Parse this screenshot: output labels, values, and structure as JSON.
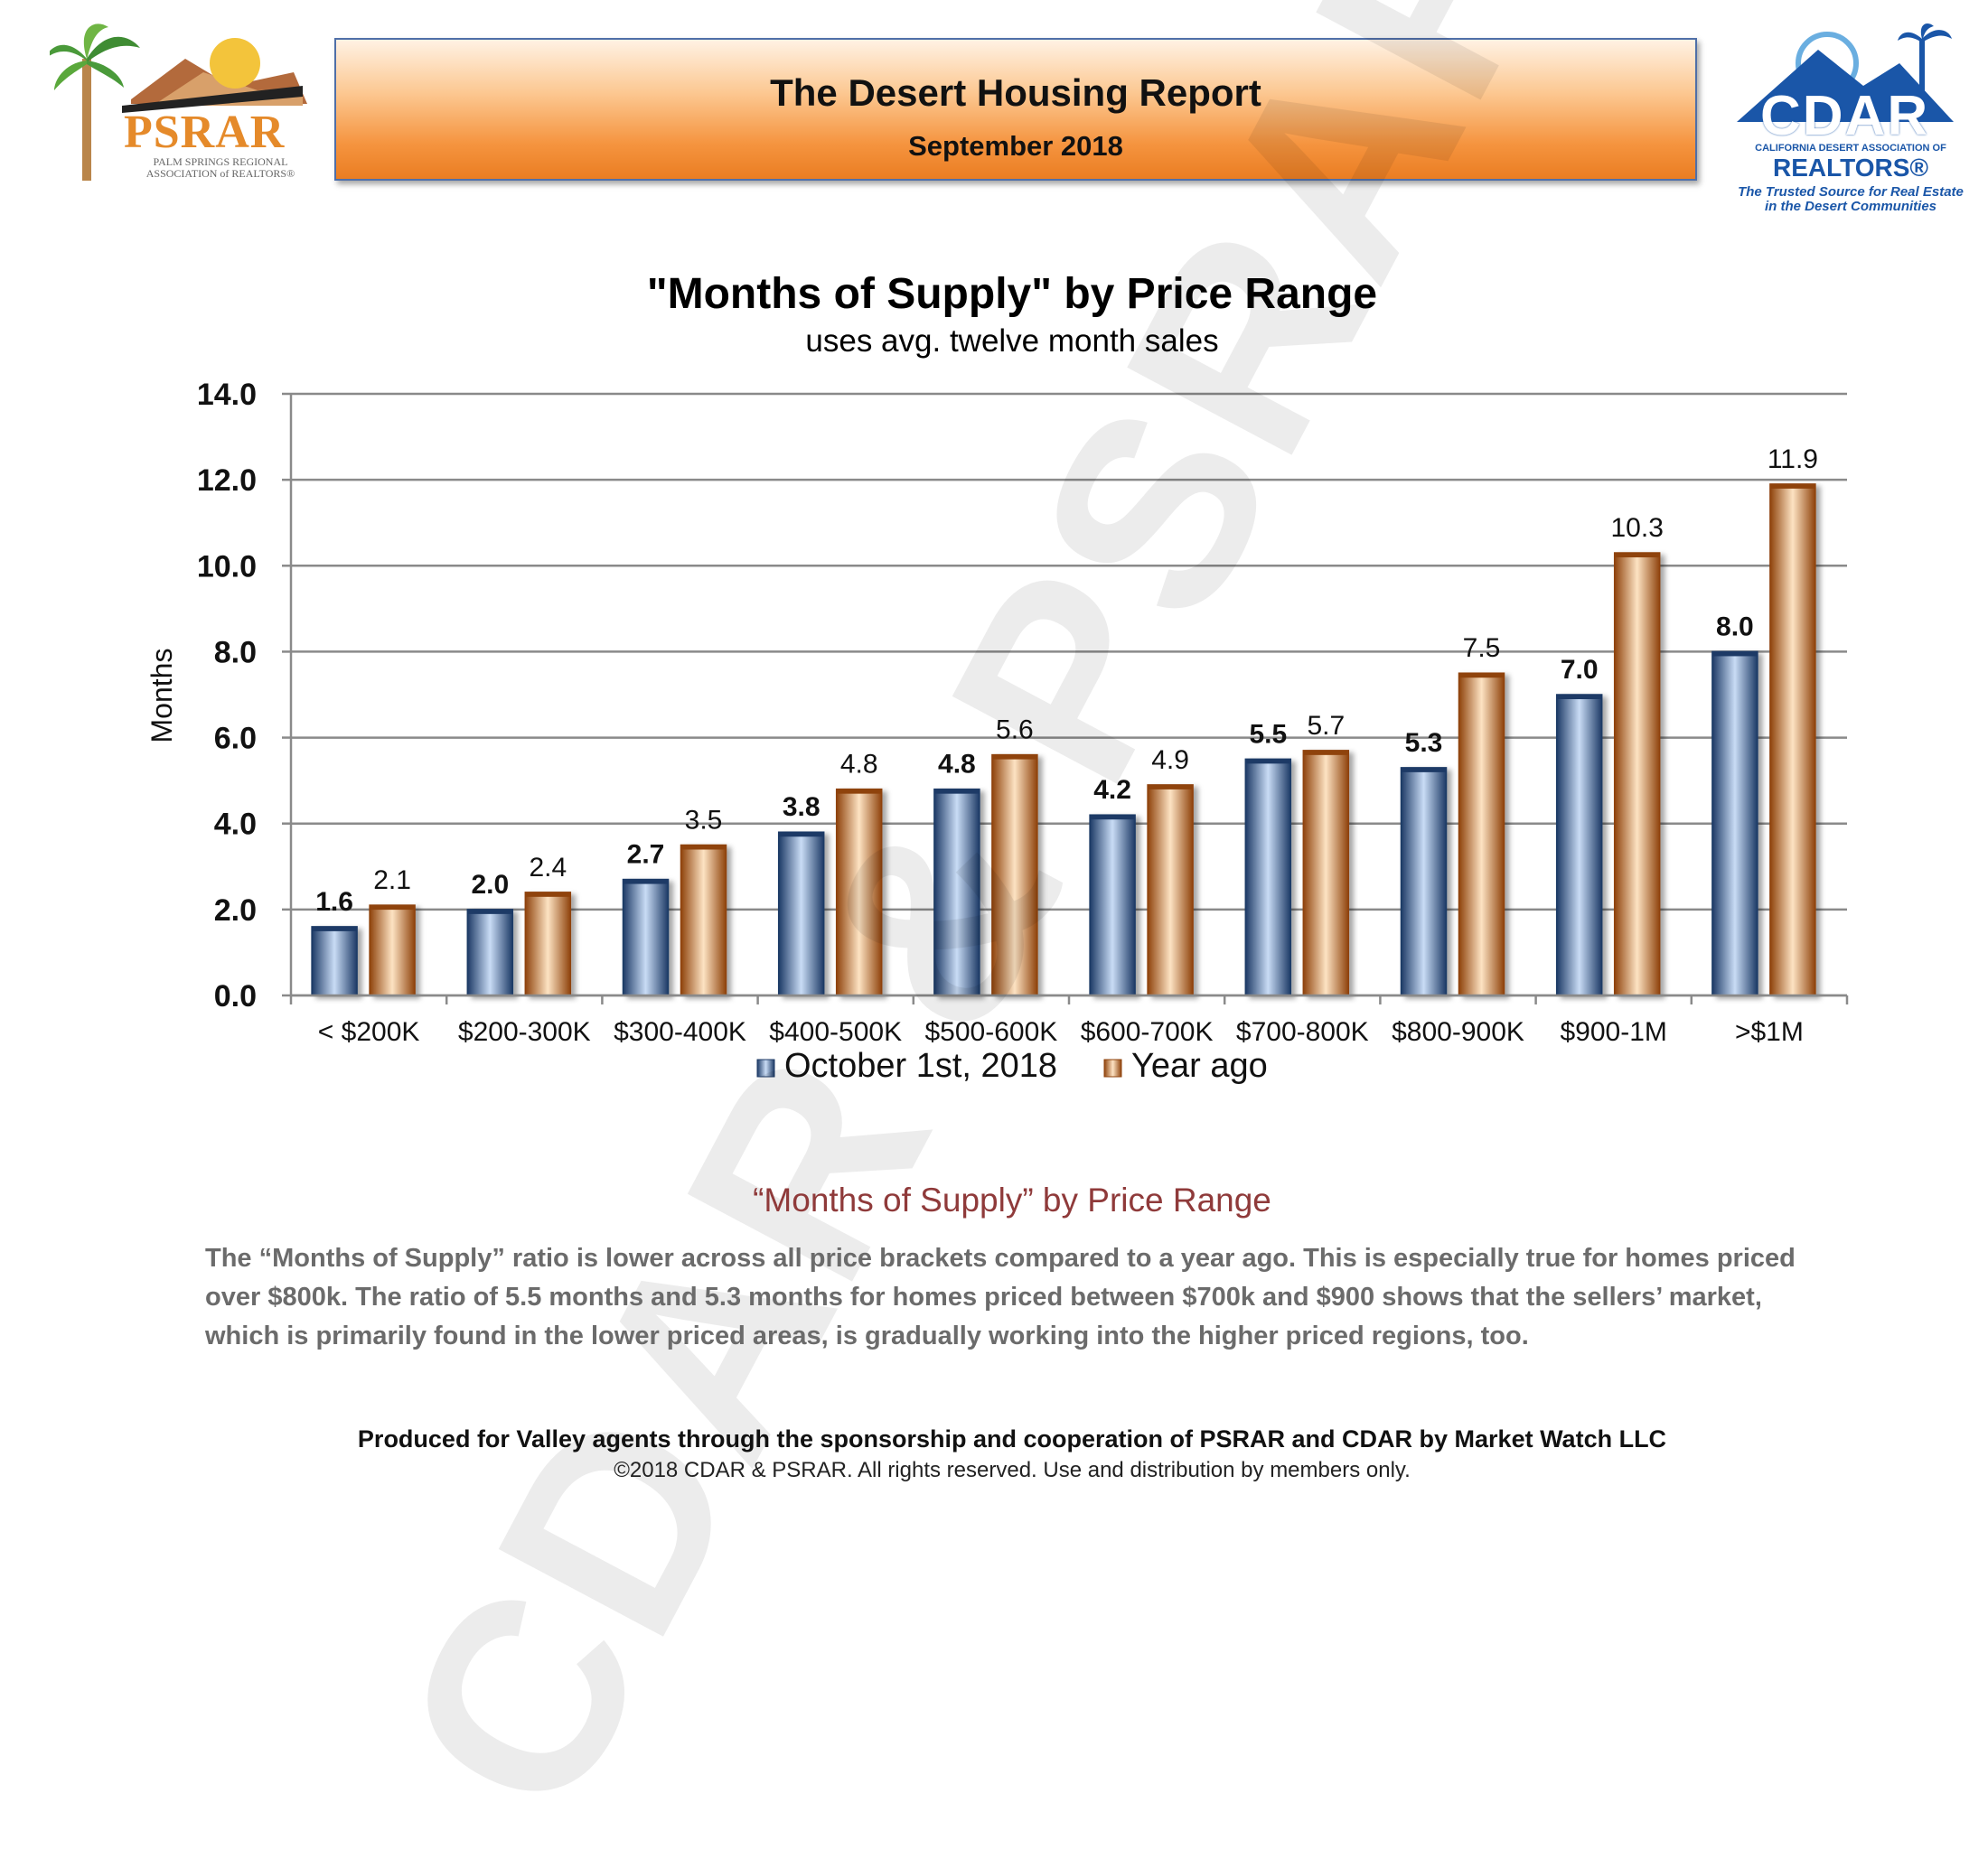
{
  "header": {
    "title": "The Desert Housing Report",
    "subtitle": "September 2018"
  },
  "logos": {
    "left": {
      "name": "PSRAR",
      "tagline": "PALM SPRINGS REGIONAL ASSOCIATION of REALTORS®"
    },
    "right": {
      "name": "CDAR",
      "small": "CALIFORNIA DESERT ASSOCIATION OF",
      "realtors": "REALTORS®",
      "tagline": "The Trusted Source for Real Estate in the Desert Communities"
    }
  },
  "watermark": "CDAR & PSRAR",
  "chart_data": {
    "type": "bar",
    "title": "\"Months of Supply\" by Price Range",
    "subtitle": "uses avg. twelve month sales",
    "ylabel": "Months",
    "xlabel": "",
    "ylim": [
      0,
      14
    ],
    "yticks": [
      "0.0",
      "2.0",
      "4.0",
      "6.0",
      "8.0",
      "10.0",
      "12.0",
      "14.0"
    ],
    "grid": true,
    "legend_position": "bottom",
    "categories": [
      "< $200K",
      "$200-300K",
      "$300-400K",
      "$400-500K",
      "$500-600K",
      "$600-700K",
      "$700-800K",
      "$800-900K",
      "$900-1M",
      ">$1M"
    ],
    "series": [
      {
        "name": "October 1st, 2018",
        "color": "#3f6aa8",
        "values": [
          1.6,
          2.0,
          2.7,
          3.8,
          4.8,
          4.2,
          5.5,
          5.3,
          7.0,
          8.0
        ],
        "labels": [
          "1.6",
          "2.0",
          "2.7",
          "3.8",
          "4.8",
          "4.2",
          "5.5",
          "5.3",
          "7.0",
          "8.0"
        ]
      },
      {
        "name": "Year ago",
        "color": "#e07c26",
        "values": [
          2.1,
          2.4,
          3.5,
          4.8,
          5.6,
          4.9,
          5.7,
          7.5,
          10.3,
          11.9
        ],
        "labels": [
          "2.1",
          "2.4",
          "3.5",
          "4.8",
          "5.6",
          "4.9",
          "5.7",
          "7.5",
          "10.3",
          "11.9"
        ]
      }
    ]
  },
  "commentary": {
    "title": "“Months of Supply” by Price Range",
    "body": "The “Months of Supply” ratio is lower across all price brackets compared to a year ago. This is especially true for homes priced over $800k. The ratio of 5.5 months and 5.3 months for homes priced between $700k and $900 shows that the sellers’ market, which is primarily found in the lower priced areas, is gradually working into the higher priced regions, too."
  },
  "footer": {
    "line1": "Produced for Valley agents through the sponsorship and cooperation of PSRAR and CDAR by Market Watch LLC",
    "line2": "©2018 CDAR & PSRAR.  All rights reserved.  Use and distribution by members only."
  }
}
